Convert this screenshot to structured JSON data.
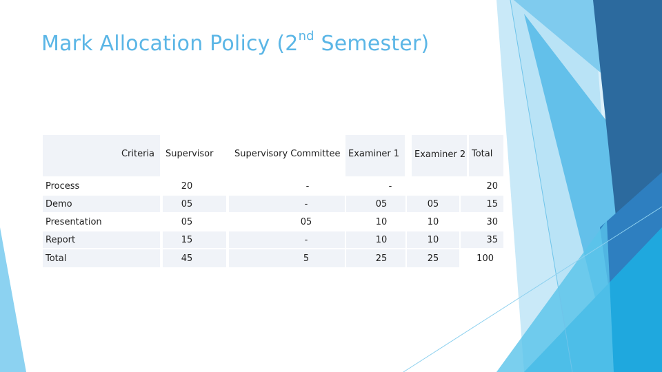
{
  "slide": {
    "title_main": "Mark Allocation Policy (2",
    "title_sup": "nd",
    "title_end": " Semester)"
  },
  "table": {
    "headers": {
      "criteria": "Criteria",
      "supervisor": "Supervisor",
      "committee": "Supervisory Committee",
      "examiner1": "Examiner 1",
      "examiner2": "Examiner 2",
      "total": "Total"
    },
    "rows": [
      {
        "criteria": "Process",
        "supervisor": "20",
        "committee": "-",
        "examiner1": "-",
        "examiner2": "",
        "total": "20"
      },
      {
        "criteria": "Demo",
        "supervisor": "05",
        "committee": "-",
        "examiner1": "05",
        "examiner2": "05",
        "total": "15"
      },
      {
        "criteria": "Presentation",
        "supervisor": "05",
        "committee": "05",
        "examiner1": "10",
        "examiner2": "10",
        "total": "30"
      },
      {
        "criteria": "Report",
        "supervisor": "15",
        "committee": "-",
        "examiner1": "10",
        "examiner2": "10",
        "total": "35"
      },
      {
        "criteria": "Total",
        "supervisor": "45",
        "committee": "5",
        "examiner1": "25",
        "examiner2": "25",
        "total": "100"
      }
    ]
  },
  "colors": {
    "title": "#5BB6E6",
    "cell_shade": "#F0F3F8",
    "decor_dark": "#2C6A9E",
    "decor_mid": "#2E7FC0",
    "decor_light": "#59C3EA",
    "decor_pale": "#BDE6F6",
    "decor_cyan": "#1FA8DE"
  }
}
